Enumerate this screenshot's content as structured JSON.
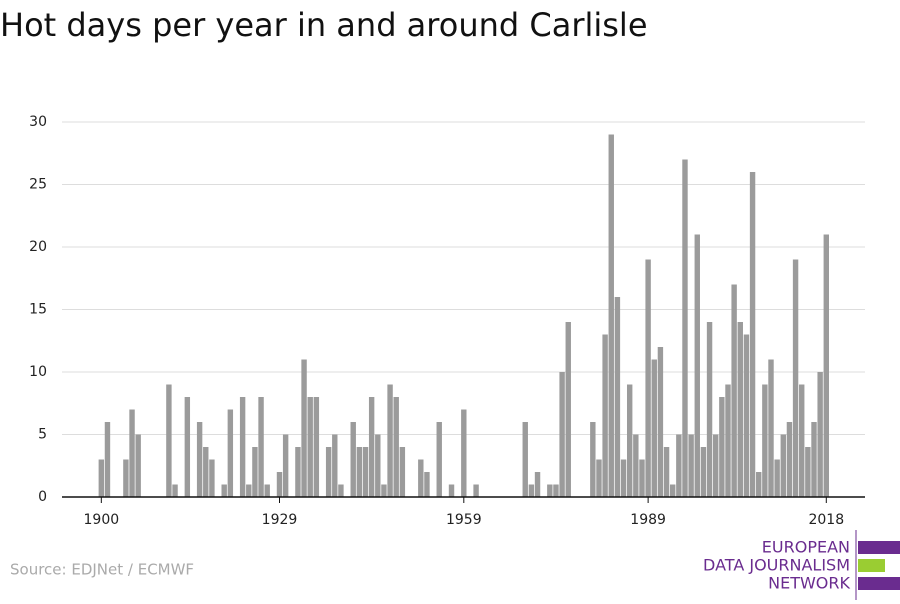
{
  "chart_data": {
    "type": "bar",
    "title": "Hot days per year in and around Carlisle",
    "source": "Source: EDJNet / ECMWF",
    "logo": [
      "EUROPEAN",
      "DATA JOURNALISM",
      "NETWORK"
    ],
    "color": "#9b9b9b",
    "grid": true,
    "x": [
      1900,
      1901,
      1902,
      1903,
      1904,
      1905,
      1906,
      1907,
      1908,
      1909,
      1910,
      1911,
      1912,
      1913,
      1914,
      1915,
      1916,
      1917,
      1918,
      1919,
      1920,
      1921,
      1922,
      1923,
      1924,
      1925,
      1926,
      1927,
      1928,
      1929,
      1930,
      1931,
      1932,
      1933,
      1934,
      1935,
      1936,
      1937,
      1938,
      1939,
      1940,
      1941,
      1942,
      1943,
      1944,
      1945,
      1946,
      1947,
      1948,
      1949,
      1950,
      1951,
      1952,
      1953,
      1954,
      1955,
      1956,
      1957,
      1958,
      1959,
      1960,
      1961,
      1962,
      1963,
      1964,
      1965,
      1966,
      1967,
      1968,
      1969,
      1970,
      1971,
      1972,
      1973,
      1974,
      1975,
      1976,
      1977,
      1978,
      1979,
      1980,
      1981,
      1982,
      1983,
      1984,
      1985,
      1986,
      1987,
      1988,
      1989,
      1990,
      1991,
      1992,
      1993,
      1994,
      1995,
      1996,
      1997,
      1998,
      1999,
      2000,
      2001,
      2002,
      2003,
      2004,
      2005,
      2006,
      2007,
      2008,
      2009,
      2010,
      2011,
      2012,
      2013,
      2014,
      2015,
      2016,
      2017,
      2018
    ],
    "values": [
      3,
      6,
      0,
      0,
      3,
      7,
      5,
      0,
      0,
      0,
      0,
      9,
      1,
      0,
      8,
      0,
      6,
      4,
      3,
      0,
      1,
      7,
      0,
      8,
      1,
      4,
      8,
      1,
      0,
      2,
      5,
      0,
      4,
      11,
      8,
      8,
      0,
      4,
      5,
      1,
      0,
      6,
      4,
      4,
      8,
      5,
      1,
      9,
      8,
      4,
      0,
      0,
      3,
      2,
      0,
      6,
      0,
      1,
      0,
      7,
      0,
      1,
      0,
      0,
      0,
      0,
      0,
      0,
      0,
      6,
      1,
      2,
      0,
      1,
      1,
      10,
      14,
      0,
      0,
      0,
      6,
      3,
      13,
      29,
      16,
      3,
      9,
      5,
      3,
      19,
      11,
      12,
      4,
      1,
      5,
      27,
      5,
      21,
      4,
      14,
      5,
      8,
      9,
      17,
      14,
      13,
      26,
      2,
      9,
      11,
      3,
      5,
      6,
      19,
      9,
      4,
      6,
      10,
      21
    ],
    "xlim": [
      1893.6,
      2024.3
    ],
    "xticks": [
      1900,
      1929,
      1959,
      1989,
      2018
    ],
    "ylim": [
      0,
      30
    ],
    "yticks": [
      0,
      5,
      10,
      15,
      20,
      25,
      30
    ]
  }
}
